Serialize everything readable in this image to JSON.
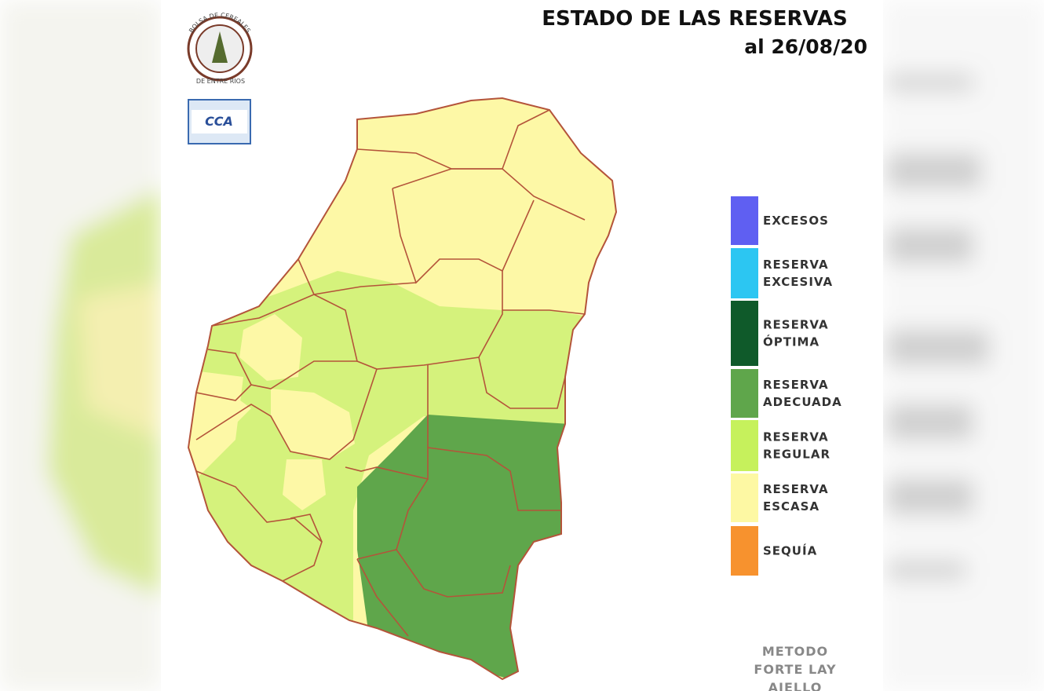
{
  "header": {
    "title": "ESTADO DE LAS RESERVAS",
    "date": "al 26/08/20"
  },
  "logos": {
    "bolsa_top": "BOLSA DE CEREALES",
    "bolsa_bottom": "DE ENTRE RIOS",
    "cca": "CCA"
  },
  "legend": [
    {
      "lines": [
        "EXCESOS"
      ],
      "color": "#5f5ff2"
    },
    {
      "lines": [
        "RESERVA",
        "EXCESIVA"
      ],
      "color": "#2cc6f2"
    },
    {
      "lines": [
        "RESERVA",
        "ÓPTIMA"
      ],
      "color": "#0f5a2a"
    },
    {
      "lines": [
        "RESERVA",
        "ADECUADA"
      ],
      "color": "#5fa64b"
    },
    {
      "lines": [
        "RESERVA",
        "REGULAR"
      ],
      "color": "#c6f15c"
    },
    {
      "lines": [
        "RESERVA",
        "ESCASA"
      ],
      "color": "#fdf8a3"
    },
    {
      "lines": [
        "SEQUÍA"
      ],
      "color": "#f7922e"
    }
  ],
  "method": [
    "METODO",
    "FORTE LAY",
    "AIELLO"
  ]
}
